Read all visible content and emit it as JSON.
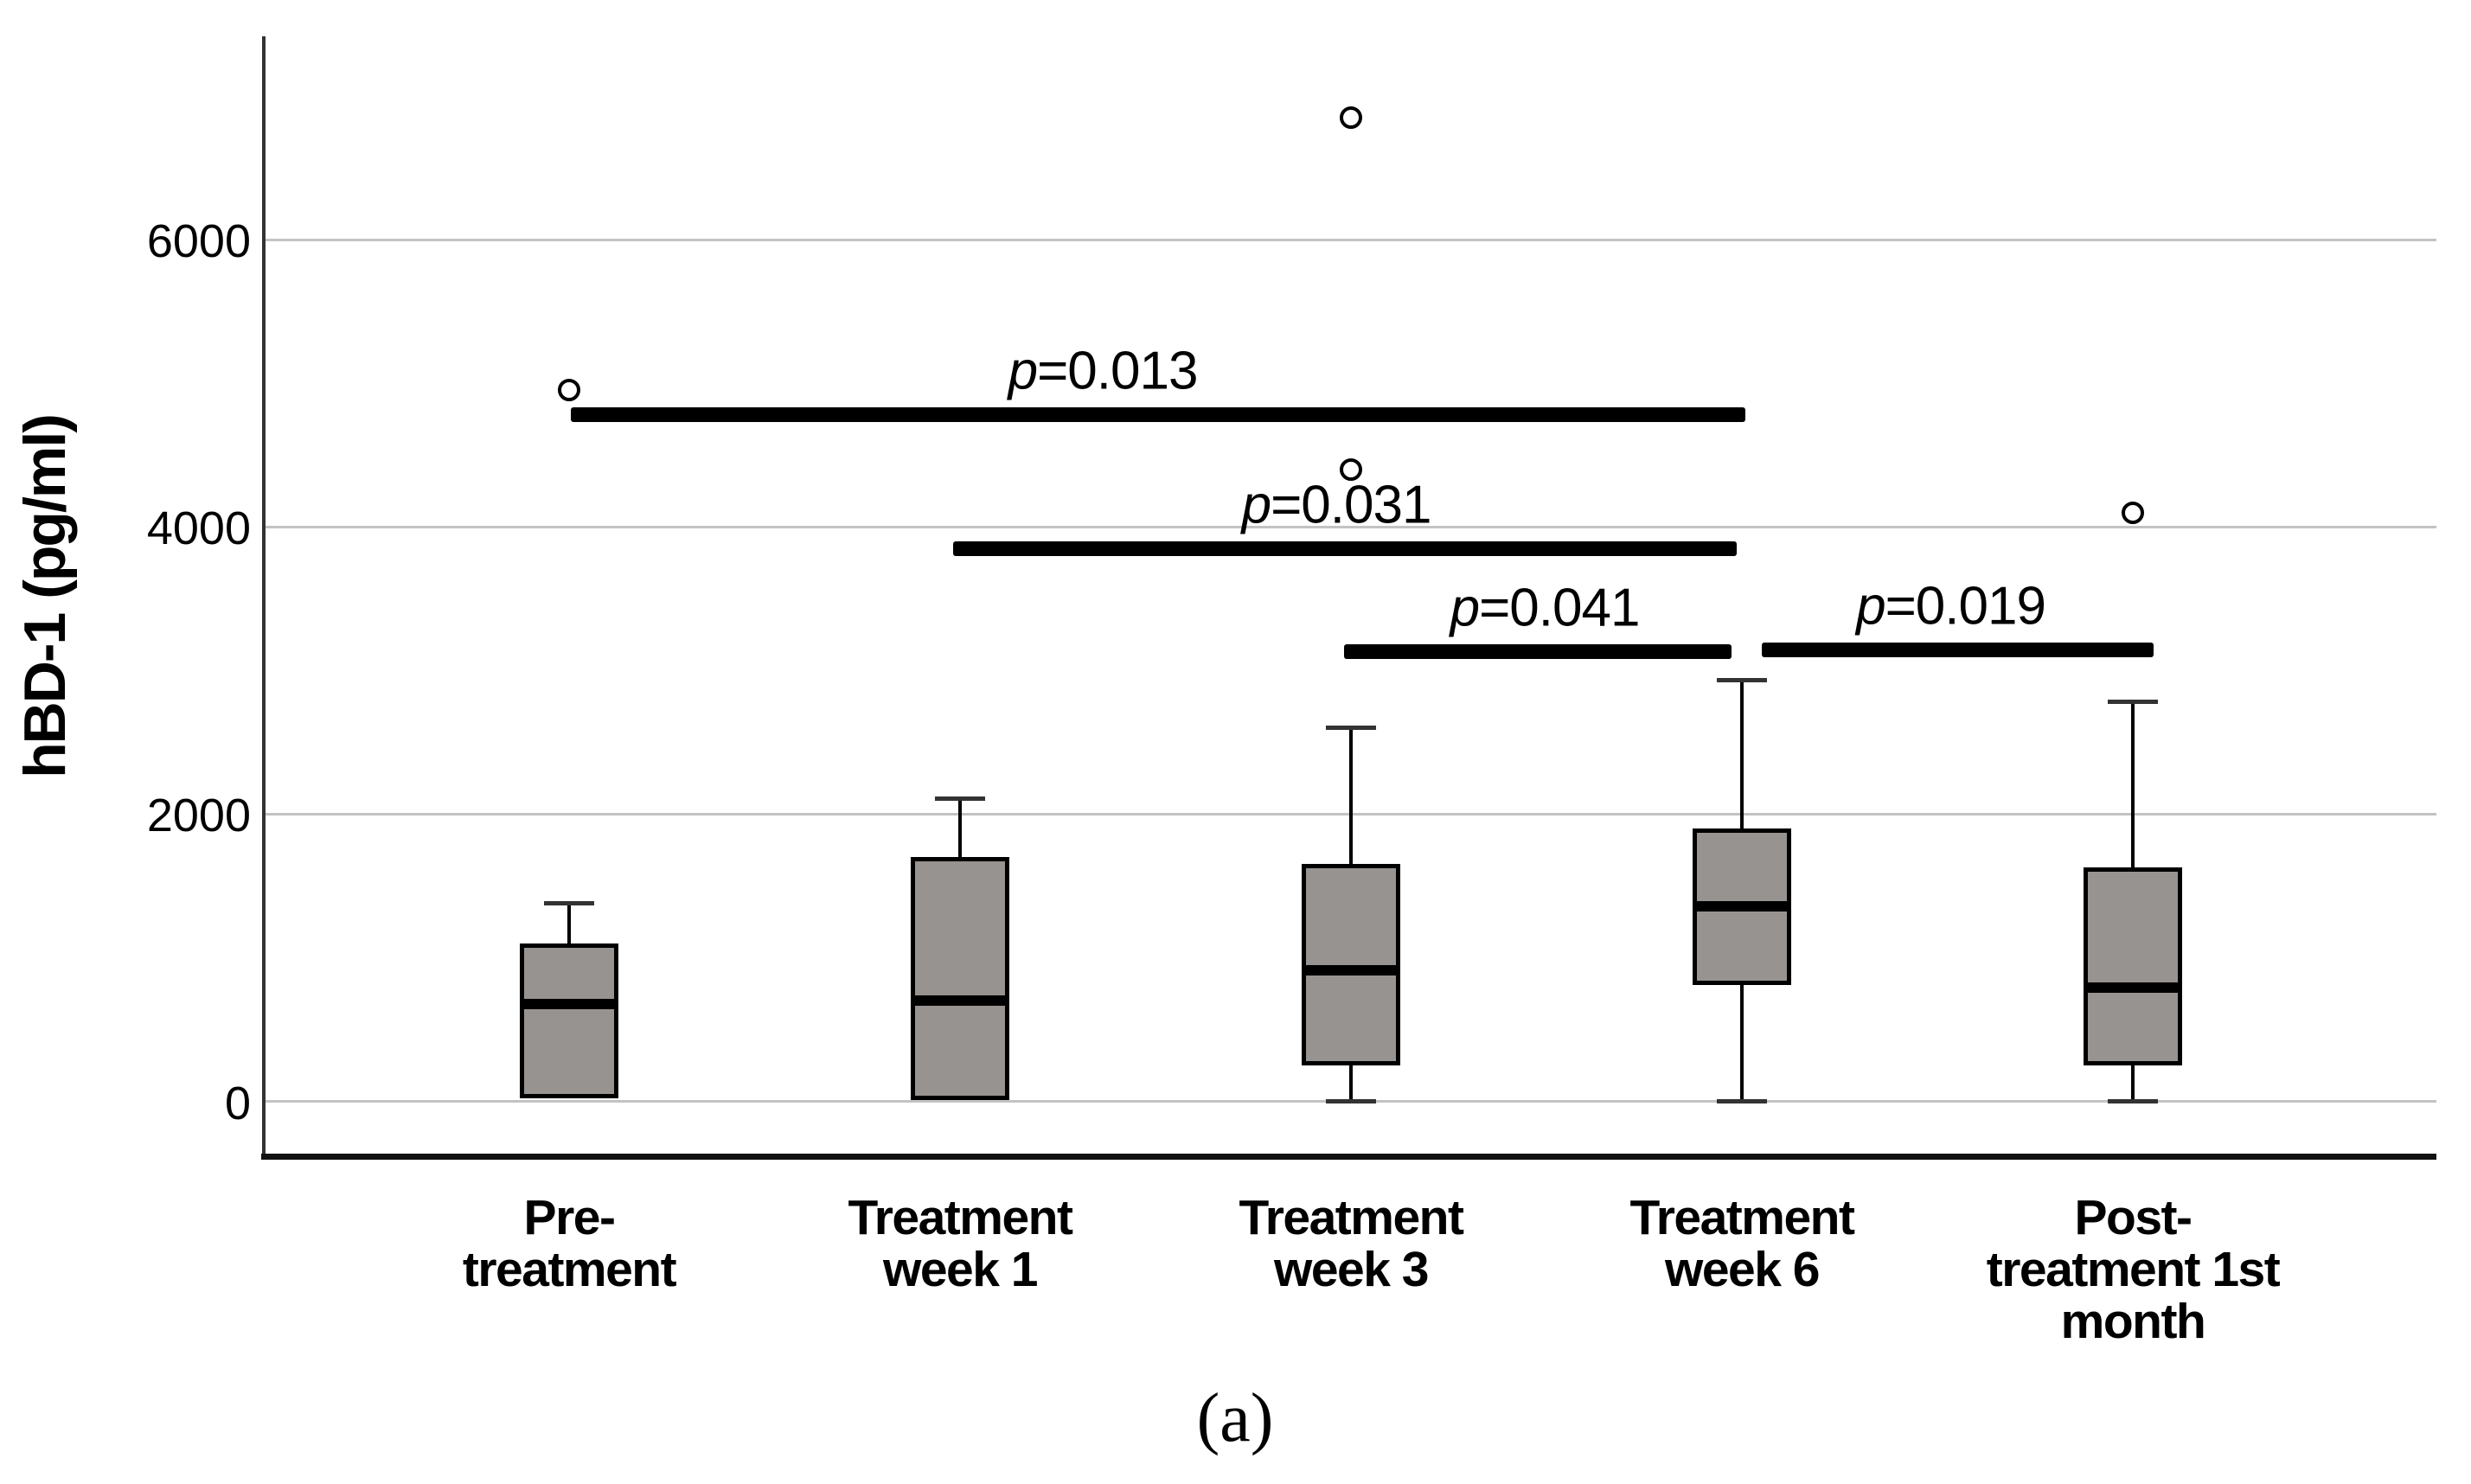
{
  "figure": {
    "caption": "(a)",
    "background": "#ffffff"
  },
  "chart_data": {
    "type": "box",
    "title": "",
    "xlabel": "",
    "ylabel": "hBD-1 (pg/ml)",
    "ylim": [
      0,
      7400
    ],
    "yticks": [
      6000,
      4000,
      2000,
      0
    ],
    "grid": "horizontal-only",
    "legend": "none",
    "categories": [
      "Pre-treatment",
      "Treatment week 1",
      "Treatment week 3",
      "Treatment week 6",
      "Post-treatment 1st month"
    ],
    "category_label_lines": [
      [
        "Pre-",
        "treatment"
      ],
      [
        "Treatment",
        "week 1"
      ],
      [
        "Treatment",
        "week 3"
      ],
      [
        "Treatment",
        "week 6"
      ],
      [
        "Post-",
        "treatment 1st",
        "month"
      ]
    ],
    "boxes": [
      {
        "category": "Pre-treatment",
        "q1": 20,
        "median": 680,
        "q3": 1100,
        "whisker_low": null,
        "whisker_high": 1380,
        "outliers": [
          4950
        ]
      },
      {
        "category": "Treatment week 1",
        "q1": 10,
        "median": 700,
        "q3": 1700,
        "whisker_low": null,
        "whisker_high": 2110,
        "outliers": []
      },
      {
        "category": "Treatment week 3",
        "q1": 250,
        "median": 910,
        "q3": 1650,
        "whisker_low": 0,
        "whisker_high": 2600,
        "outliers": [
          4400,
          6850
        ]
      },
      {
        "category": "Treatment week 6",
        "q1": 810,
        "median": 1360,
        "q3": 1900,
        "whisker_low": 0,
        "whisker_high": 2930,
        "outliers": []
      },
      {
        "category": "Post-treatment 1st month",
        "q1": 250,
        "median": 790,
        "q3": 1630,
        "whisker_low": 0,
        "whisker_high": 2780,
        "outliers": [
          4100
        ]
      }
    ],
    "significance_bars": [
      {
        "label": "p=0.013",
        "from": 0,
        "to": 3,
        "y": 4780
      },
      {
        "label": "p=0.031",
        "from": 1,
        "to": 3,
        "y": 3850
      },
      {
        "label": "p=0.041",
        "from": 2,
        "to": 3,
        "y": 3130
      },
      {
        "label": "p=0.019",
        "from": 3,
        "to": 4,
        "y": 3140
      }
    ],
    "colors": {
      "box_fill": "#979390",
      "box_border": "#000000",
      "median": "#000000",
      "whisker": "#000000",
      "gridline": "#c3c3c3",
      "y_axis": "#333333",
      "x_axis": "#111111",
      "outlier_stroke": "#000000",
      "text": "#000000"
    }
  }
}
